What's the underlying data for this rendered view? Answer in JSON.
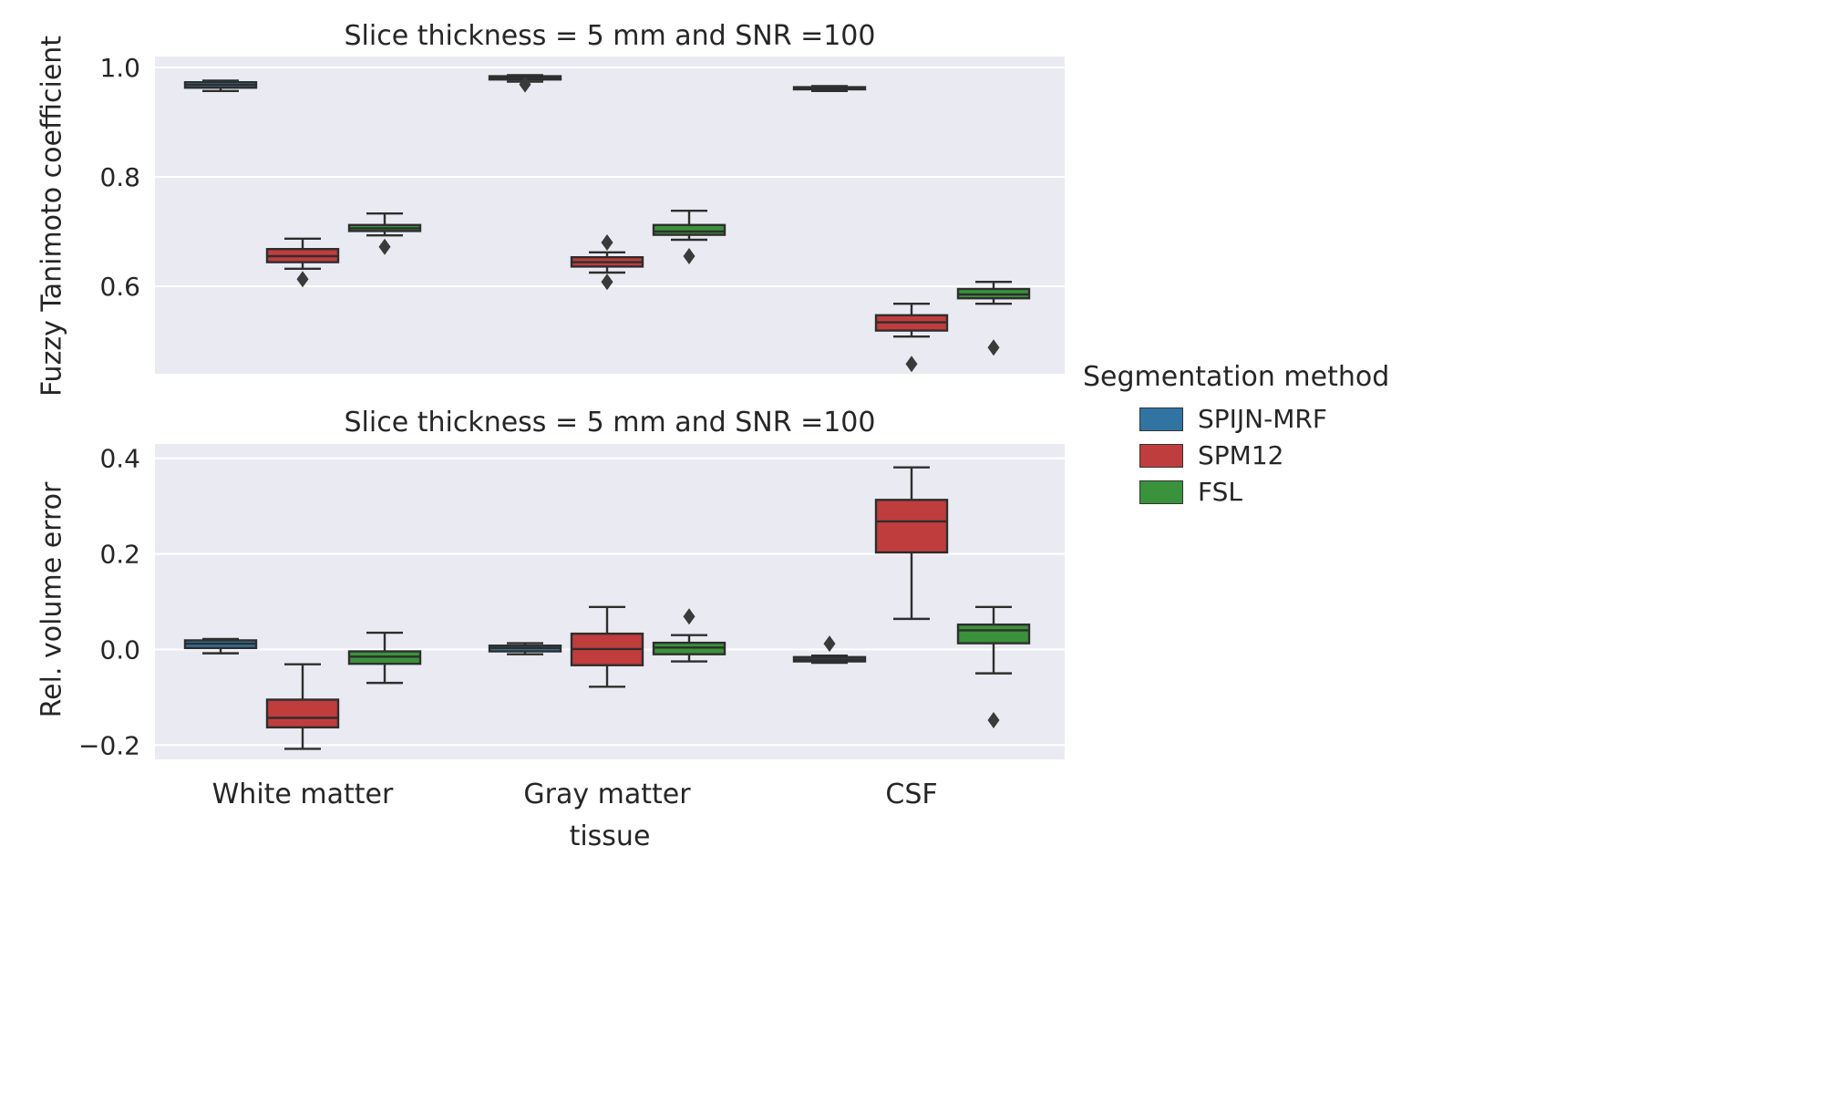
{
  "figure": {
    "background": "#ffffff",
    "plot_background": "#eaeaf2",
    "grid_color": "#ffffff",
    "text_color": "#262626",
    "box_edge_color": "#2e2e2e",
    "outlier_color": "#3a3a3a"
  },
  "legend": {
    "title": "Segmentation method",
    "entries": [
      {
        "label": "SPIJN-MRF",
        "color": "#3274a1"
      },
      {
        "label": "SPM12",
        "color": "#c03d3e"
      },
      {
        "label": "FSL",
        "color": "#3a923a"
      }
    ]
  },
  "xlabel": "tissue",
  "chart_data": [
    {
      "type": "boxplot",
      "title": "Slice thickness = 5 mm and SNR =100",
      "ylabel": "Fuzzy Tanimoto coefficient",
      "ylim": [
        0.44,
        1.02
      ],
      "yticks": [
        1.0,
        0.8,
        0.6
      ],
      "grid": true,
      "categories": [
        "White matter",
        "Gray matter",
        "CSF"
      ],
      "series": [
        {
          "name": "SPIJN-MRF",
          "color": "#3274a1",
          "boxes": [
            {
              "whislo": 0.957,
              "q1": 0.963,
              "med": 0.968,
              "q3": 0.973,
              "whishi": 0.976,
              "outliers": []
            },
            {
              "whislo": 0.974,
              "q1": 0.978,
              "med": 0.981,
              "q3": 0.984,
              "whishi": 0.986,
              "outliers": [
                0.969
              ]
            },
            {
              "whislo": 0.957,
              "q1": 0.96,
              "med": 0.962,
              "q3": 0.964,
              "whishi": 0.966,
              "outliers": []
            }
          ]
        },
        {
          "name": "SPM12",
          "color": "#c03d3e",
          "boxes": [
            {
              "whislo": 0.632,
              "q1": 0.644,
              "med": 0.655,
              "q3": 0.668,
              "whishi": 0.687,
              "outliers": [
                0.613
              ]
            },
            {
              "whislo": 0.625,
              "q1": 0.636,
              "med": 0.644,
              "q3": 0.653,
              "whishi": 0.662,
              "outliers": [
                0.68,
                0.608
              ]
            },
            {
              "whislo": 0.508,
              "q1": 0.519,
              "med": 0.534,
              "q3": 0.547,
              "whishi": 0.568,
              "outliers": [
                0.458
              ]
            }
          ]
        },
        {
          "name": "FSL",
          "color": "#3a923a",
          "boxes": [
            {
              "whislo": 0.693,
              "q1": 0.701,
              "med": 0.706,
              "q3": 0.712,
              "whishi": 0.733,
              "outliers": [
                0.672
              ]
            },
            {
              "whislo": 0.685,
              "q1": 0.694,
              "med": 0.7,
              "q3": 0.712,
              "whishi": 0.738,
              "outliers": [
                0.655
              ]
            },
            {
              "whislo": 0.568,
              "q1": 0.578,
              "med": 0.585,
              "q3": 0.595,
              "whishi": 0.608,
              "outliers": [
                0.488
              ]
            }
          ]
        }
      ]
    },
    {
      "type": "boxplot",
      "title": "Slice thickness = 5 mm and SNR =100",
      "ylabel": "Rel. volume error",
      "xlabel": "tissue",
      "ylim": [
        -0.23,
        0.43
      ],
      "yticks": [
        0.4,
        0.2,
        0.0,
        -0.2
      ],
      "grid": true,
      "categories": [
        "White matter",
        "Gray matter",
        "CSF"
      ],
      "series": [
        {
          "name": "SPIJN-MRF",
          "color": "#3274a1",
          "boxes": [
            {
              "whislo": -0.008,
              "q1": 0.003,
              "med": 0.012,
              "q3": 0.019,
              "whishi": 0.022,
              "outliers": []
            },
            {
              "whislo": -0.01,
              "q1": -0.004,
              "med": 0.003,
              "q3": 0.008,
              "whishi": 0.013,
              "outliers": []
            },
            {
              "whislo": -0.028,
              "q1": -0.025,
              "med": -0.021,
              "q3": -0.016,
              "whishi": -0.013,
              "outliers": [
                0.012
              ]
            }
          ]
        },
        {
          "name": "SPM12",
          "color": "#c03d3e",
          "boxes": [
            {
              "whislo": -0.208,
              "q1": -0.163,
              "med": -0.143,
              "q3": -0.105,
              "whishi": -0.031,
              "outliers": []
            },
            {
              "whislo": -0.078,
              "q1": -0.033,
              "med": 0.001,
              "q3": 0.033,
              "whishi": 0.089,
              "outliers": []
            },
            {
              "whislo": 0.064,
              "q1": 0.203,
              "med": 0.268,
              "q3": 0.313,
              "whishi": 0.381,
              "outliers": []
            }
          ]
        },
        {
          "name": "FSL",
          "color": "#3a923a",
          "boxes": [
            {
              "whislo": -0.07,
              "q1": -0.03,
              "med": -0.015,
              "q3": -0.004,
              "whishi": 0.035,
              "outliers": []
            },
            {
              "whislo": -0.025,
              "q1": -0.01,
              "med": 0.004,
              "q3": 0.014,
              "whishi": 0.03,
              "outliers": [
                0.069
              ]
            },
            {
              "whislo": -0.05,
              "q1": 0.013,
              "med": 0.04,
              "q3": 0.052,
              "whishi": 0.089,
              "outliers": [
                -0.148
              ]
            }
          ]
        }
      ]
    }
  ]
}
